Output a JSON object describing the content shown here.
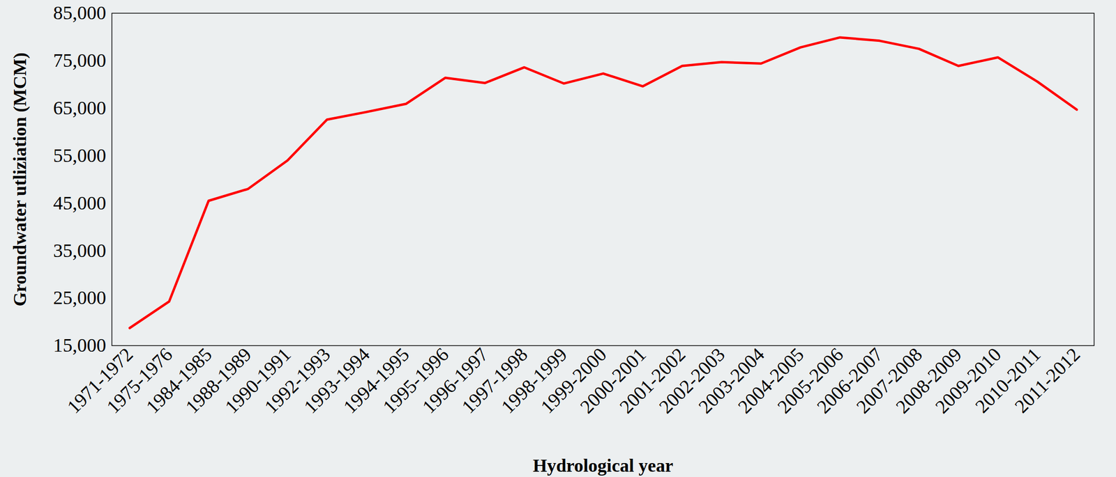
{
  "chart_data": {
    "type": "line",
    "x_label": "Hydrological year",
    "y_label": "Groundwater utliziation (MCM)",
    "categories": [
      "1971-1972",
      "1975-1976",
      "1984-1985",
      "1988-1989",
      "1990-1991",
      "1992-1993",
      "1993-1994",
      "1994-1995",
      "1995-1996",
      "1996-1997",
      "1997-1998",
      "1998-1999",
      "1999-2000",
      "2000-2001",
      "2001-2002",
      "2002-2003",
      "2003-2004",
      "2004-2005",
      "2005-2006",
      "2006-2007",
      "2007-2008",
      "2008-2009",
      "2009-2010",
      "2010-2011",
      "2011-2012"
    ],
    "values": [
      18700,
      24300,
      45500,
      48000,
      54000,
      62600,
      64200,
      65900,
      71400,
      70300,
      73600,
      70200,
      72300,
      69600,
      73900,
      74700,
      74400,
      77800,
      79900,
      79200,
      77500,
      73900,
      75700,
      70600,
      64700
    ],
    "color": "#ff0000",
    "ylim": [
      15000,
      85000
    ],
    "yticks": [
      15000,
      25000,
      35000,
      45000,
      55000,
      65000,
      75000,
      85000
    ],
    "grid": false
  }
}
